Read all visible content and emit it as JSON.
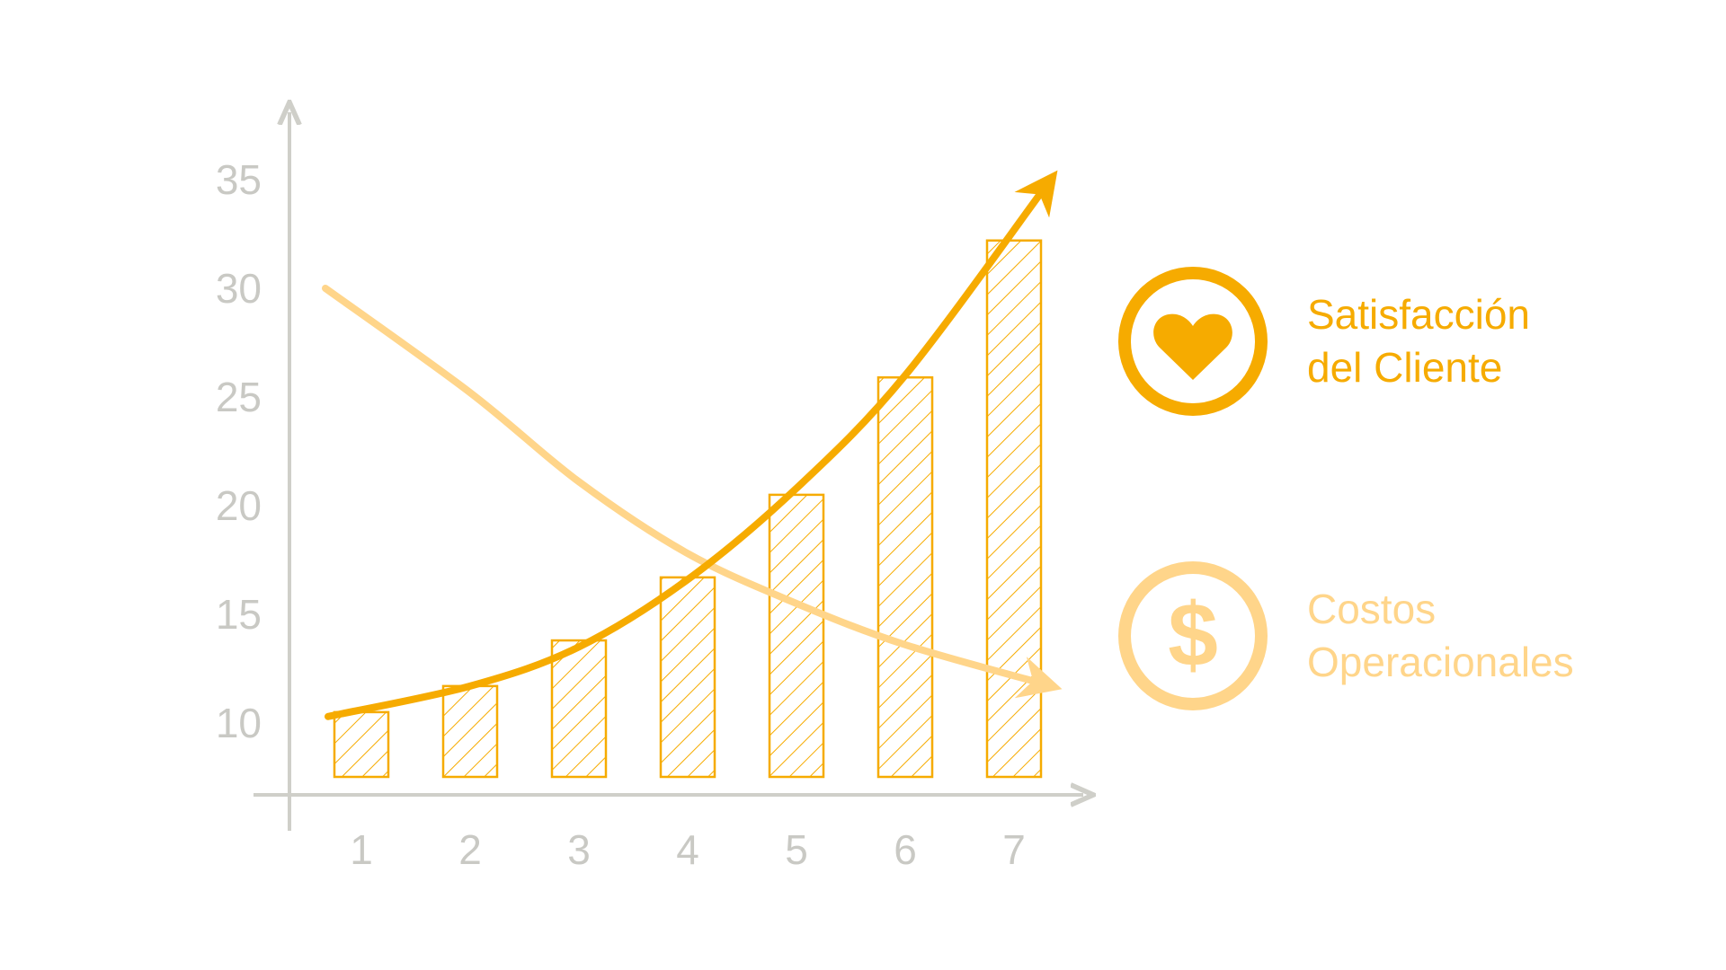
{
  "chart_data": {
    "type": "bar",
    "title": "",
    "xlabel": "",
    "ylabel": "",
    "categories": [
      "1",
      "2",
      "3",
      "4",
      "5",
      "6",
      "7"
    ],
    "bars": {
      "values": [
        10.5,
        11.7,
        13.8,
        16.7,
        20.5,
        25.9,
        32.2
      ]
    },
    "series": [
      {
        "name": "Satisfacción del Cliente",
        "type": "line",
        "x": [
          1,
          2,
          3,
          4,
          5,
          6,
          7
        ],
        "values": [
          10.3,
          11.7,
          13.5,
          16.6,
          20.8,
          26.0,
          32.8
        ]
      },
      {
        "name": "Costos Operacionales",
        "type": "line",
        "x": [
          1,
          2,
          3,
          4,
          5,
          6,
          7
        ],
        "values": [
          30.0,
          25.2,
          21.1,
          17.8,
          15.5,
          13.6,
          12.3
        ]
      }
    ],
    "yticks": [
      "10",
      "15",
      "20",
      "25",
      "30",
      "35"
    ],
    "ylim": [
      8,
      37
    ],
    "grid": false,
    "legend": "right"
  },
  "legend": {
    "items": [
      {
        "icon": "heart-icon",
        "line1": "Satisfacción",
        "line2": "del Cliente"
      },
      {
        "icon": "dollar-icon",
        "line1": "Costos",
        "line2": "Operacionales"
      }
    ]
  },
  "colors": {
    "axis": "#cfcfc9",
    "bar": "#f6ab00",
    "primary": "#f6ab00",
    "secondary": "#ffd58a",
    "tick": "#c9c9c4"
  }
}
